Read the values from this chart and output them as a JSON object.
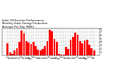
{
  "title": "Solar PV/Inverter Performance\nMonthly Solar Energy Production\nAverage Per Day (KWh)",
  "title_fontsize": 2.8,
  "bar_color": "#ff0000",
  "background_color": "#ffffff",
  "grid_color": "#aaaaaa",
  "ylim": [
    0,
    8
  ],
  "yticks": [
    1,
    2,
    3,
    4,
    5,
    6,
    7,
    8
  ],
  "values": [
    3.5,
    0.8,
    0.5,
    1.5,
    2.1,
    3.9,
    7.3,
    6.5,
    4.2,
    3.7,
    3.4,
    4.0,
    2.7,
    1.6,
    1.4,
    2.0,
    2.8,
    4.3,
    7.6,
    7.1,
    4.9,
    3.9,
    0.4,
    0.2,
    0.3,
    2.6,
    1.9,
    4.7,
    5.4,
    6.8,
    6.1,
    4.2,
    3.5,
    4.4,
    4.6,
    3.1,
    2.2,
    1.4
  ],
  "xlabel_fontsize": 2.0,
  "ylabel_fontsize": 2.5,
  "ytick_fontsize": 2.5,
  "xtick_fontsize": 1.8
}
